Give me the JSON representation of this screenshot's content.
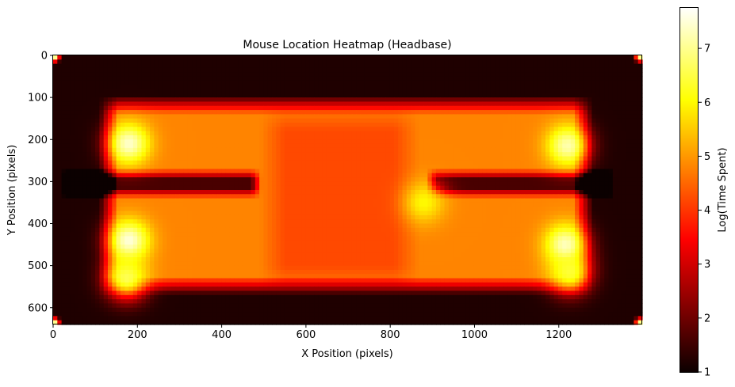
{
  "chart_data": {
    "type": "heatmap",
    "title": "Mouse Location Heatmap (Headbase)",
    "xlabel": "X Position (pixels)",
    "ylabel": "Y Position (pixels)",
    "xlim": [
      0,
      1398
    ],
    "ylim": [
      640,
      0
    ],
    "x_ticks": [
      0,
      200,
      400,
      600,
      800,
      1000,
      1200
    ],
    "y_ticks": [
      0,
      100,
      200,
      300,
      400,
      500,
      600
    ],
    "colorscale": "hot",
    "colorbar": {
      "label": "Log(Time Spent)",
      "range": [
        1,
        7.75
      ],
      "ticks": [
        1,
        2,
        3,
        4,
        5,
        6,
        7
      ]
    },
    "grid": false,
    "features": {
      "background_level": 1.2,
      "arena_floor": {
        "x": [
          110,
          1280
        ],
        "y": [
          95,
          570
        ],
        "level": 4.8
      },
      "central_zone": {
        "x": [
          490,
          870
        ],
        "y": [
          120,
          560
        ],
        "level": 4.2
      },
      "left_divider": {
        "x": [
          20,
          495
        ],
        "y": [
          270,
          340
        ],
        "level": 1.6
      },
      "right_divider": {
        "x": [
          885,
          1330
        ],
        "y": [
          270,
          340
        ],
        "level": 1.6
      },
      "hotspots": [
        {
          "x": 180,
          "y": 210,
          "level": 7.4
        },
        {
          "x": 180,
          "y": 440,
          "level": 7.5
        },
        {
          "x": 175,
          "y": 530,
          "level": 6.6
        },
        {
          "x": 1220,
          "y": 215,
          "level": 7.2
        },
        {
          "x": 1215,
          "y": 450,
          "level": 7.3
        },
        {
          "x": 1225,
          "y": 515,
          "level": 6.4
        },
        {
          "x": 880,
          "y": 350,
          "level": 6.0
        }
      ],
      "corner_hotspots": [
        {
          "x": 5,
          "y": 5,
          "level": 7.0
        },
        {
          "x": 1392,
          "y": 5,
          "level": 7.0
        },
        {
          "x": 5,
          "y": 635,
          "level": 7.0
        },
        {
          "x": 1392,
          "y": 635,
          "level": 7.0
        }
      ]
    }
  }
}
